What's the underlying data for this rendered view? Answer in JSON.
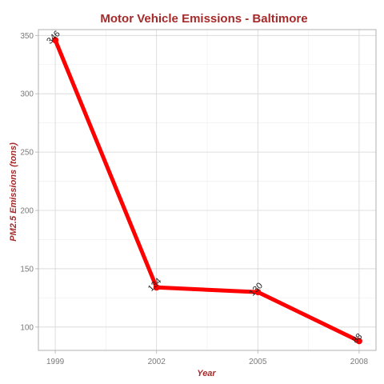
{
  "chart_data": {
    "type": "line",
    "title": "Motor Vehicle Emissions - Baltimore",
    "xlabel": "Year",
    "ylabel": "PM2.5 Emissions (tons)",
    "x": [
      1999,
      2002,
      2005,
      2008
    ],
    "series": [
      {
        "values": [
          346,
          134,
          130,
          88
        ],
        "labels": [
          "346",
          "134",
          "130",
          "88"
        ]
      }
    ],
    "xlim": [
      1998.5,
      2008.5
    ],
    "ylim": [
      80,
      355
    ],
    "x_ticks": [
      1999,
      2002,
      2005,
      2008
    ],
    "y_ticks": [
      100,
      150,
      200,
      250,
      300,
      350
    ],
    "x_tick_labels": [
      "1999",
      "2002",
      "2005",
      "2008"
    ],
    "y_tick_labels": [
      "100",
      "150",
      "200",
      "250",
      "300",
      "350"
    ],
    "grid": true,
    "colors": {
      "series": "#ff0000",
      "title": "#a52a2a",
      "axis_title": "#a52a2a",
      "tick_label": "#7a7a7a",
      "panel_border": "#b0b0b0"
    }
  }
}
